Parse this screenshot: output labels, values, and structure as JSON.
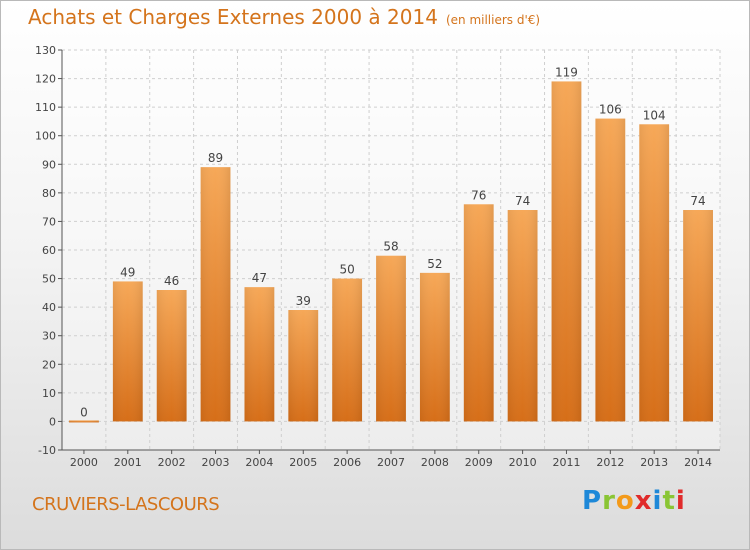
{
  "header": {
    "title": "Achats et Charges Externes 2000 à 2014",
    "subtitle": "(en milliers d'€)"
  },
  "footer": {
    "town": "CRUVIERS-LASCOURS",
    "logo_text": "Proxiti"
  },
  "colors": {
    "accent": "#d4741c",
    "bar_light": "#f6a858",
    "bar_dark": "#d8721e"
  },
  "chart_data": {
    "type": "bar",
    "title": "Achats et Charges Externes 2000 à 2014",
    "subtitle": "(en milliers d'€)",
    "categories": [
      "2000",
      "2001",
      "2002",
      "2003",
      "2004",
      "2005",
      "2006",
      "2007",
      "2008",
      "2009",
      "2010",
      "2011",
      "2012",
      "2013",
      "2014"
    ],
    "values": [
      0,
      49,
      46,
      89,
      47,
      39,
      50,
      58,
      52,
      76,
      74,
      119,
      106,
      104,
      74
    ],
    "ylim": [
      -10,
      130
    ],
    "yticks": [
      -10,
      0,
      10,
      20,
      30,
      40,
      50,
      60,
      70,
      80,
      90,
      100,
      110,
      120,
      130
    ],
    "grid": true,
    "legend": "none"
  }
}
